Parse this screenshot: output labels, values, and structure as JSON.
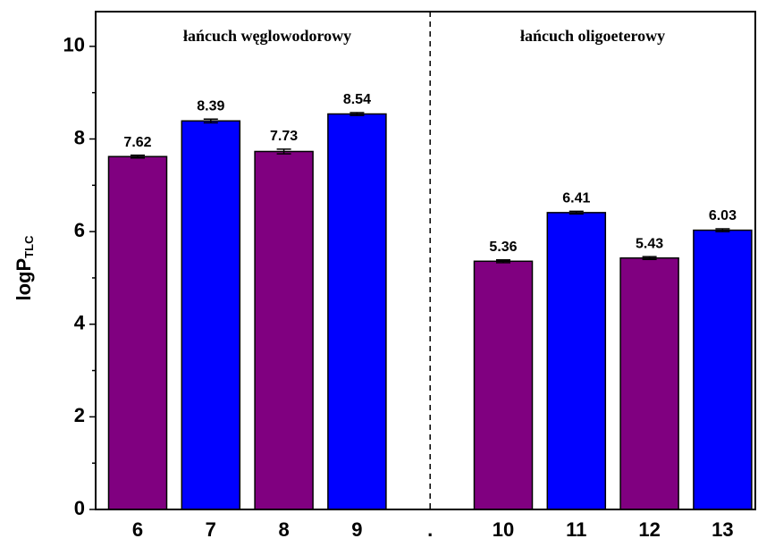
{
  "chart_data": {
    "type": "bar",
    "y_label": "logP",
    "y_label_sub": "TLC",
    "annotations": [
      "łańcuch węglowodorowy",
      "łańcuch oligoeterowy"
    ],
    "categories": [
      "6",
      "7",
      "8",
      "9",
      ".",
      "10",
      "11",
      "12",
      "13"
    ],
    "values": [
      7.62,
      8.39,
      7.73,
      8.54,
      null,
      5.36,
      6.41,
      5.43,
      6.03
    ],
    "errors": [
      0.03,
      0.04,
      0.05,
      0.03,
      null,
      0.03,
      0.03,
      0.03,
      0.03
    ],
    "colors": [
      "#800080",
      "#0000ff",
      "#800080",
      "#0000ff",
      null,
      "#800080",
      "#0000ff",
      "#800080",
      "#0000ff"
    ],
    "ylim": [
      0,
      10.75
    ],
    "yticks": [
      0,
      2,
      4,
      6,
      8,
      10
    ],
    "yminor_ticks": [
      1,
      3,
      5,
      7,
      9
    ],
    "divider_category": 4
  }
}
